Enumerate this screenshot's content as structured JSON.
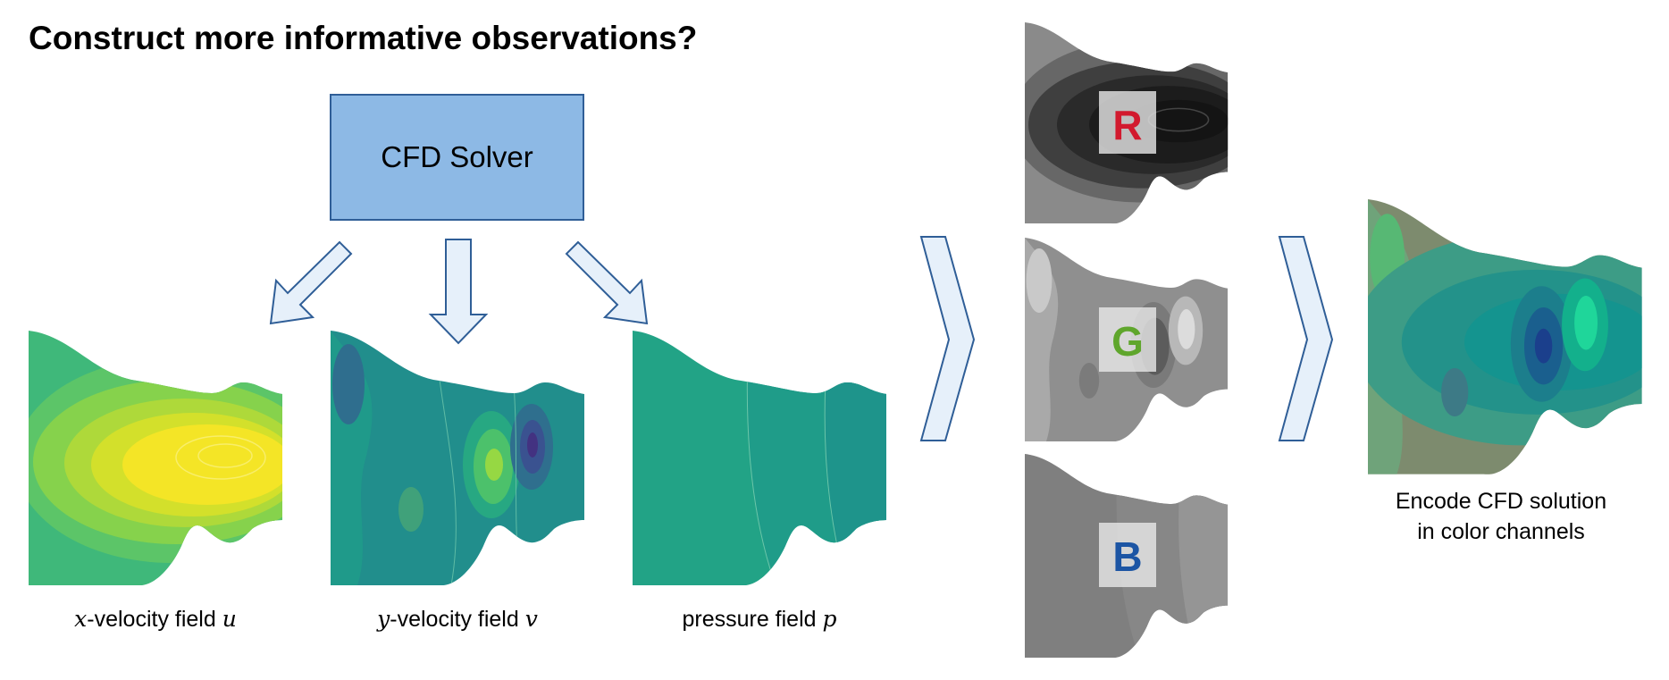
{
  "title": "Construct more informative observations?",
  "solver_label": "CFD Solver",
  "fields": [
    {
      "prefix_var": "x",
      "text": "-velocity field ",
      "var": "u"
    },
    {
      "prefix_var": "y",
      "text": "-velocity field ",
      "var": "v"
    },
    {
      "prefix_var": "",
      "text": "pressure field ",
      "var": "p"
    }
  ],
  "channels": [
    {
      "letter": "R",
      "color": "#d21a2e"
    },
    {
      "letter": "G",
      "color": "#5fa62c"
    },
    {
      "letter": "B",
      "color": "#1c55a4"
    }
  ],
  "encode_caption": [
    "Encode CFD solution",
    "in color channels"
  ],
  "colors": {
    "solver_fill": "#8db9e5",
    "solver_border": "#2f5e97",
    "arrow_fill": "#e6f0fa",
    "arrow_stroke": "#2f5e97"
  }
}
